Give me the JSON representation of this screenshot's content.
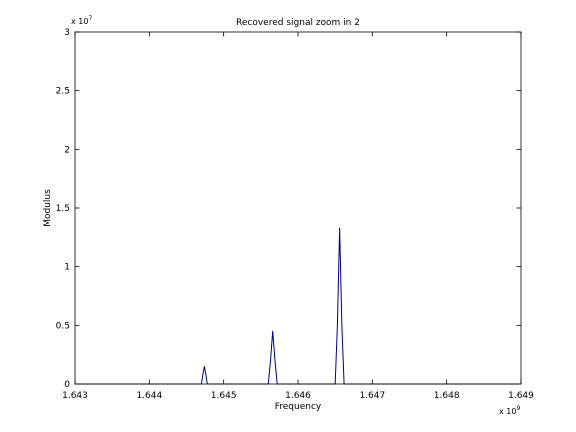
{
  "chart_data": {
    "type": "line",
    "title": "Recovered signal zoom in 2",
    "xlabel": "Frequency",
    "ylabel": "Modulus",
    "x_multiplier": {
      "base": "x 10",
      "exponent": "9"
    },
    "y_multiplier": {
      "base": "x 10",
      "exponent": "7"
    },
    "xlim": [
      1.643,
      1.649
    ],
    "ylim": [
      0,
      3
    ],
    "x_ticks": [
      "1.643",
      "1.644",
      "1.645",
      "1.646",
      "1.647",
      "1.648",
      "1.649"
    ],
    "y_ticks": [
      "0",
      "0.5",
      "1",
      "1.5",
      "2",
      "2.5",
      "3"
    ],
    "grid": false,
    "line_color": "#00008b",
    "series": [
      {
        "x": [
          1.643,
          1.6447,
          1.64472,
          1.64474,
          1.64476,
          1.64478,
          1.6448,
          1.6456,
          1.64563,
          1.64566,
          1.64569,
          1.64572,
          1.64575,
          1.6465,
          1.64653,
          1.64656,
          1.64659,
          1.64662,
          1.64665,
          1.649
        ],
        "y": [
          0,
          0,
          0.08,
          0.15,
          0.08,
          0,
          0,
          0,
          0.2,
          0.45,
          0.2,
          0,
          0,
          0,
          0.5,
          1.33,
          0.5,
          0,
          0,
          0
        ]
      }
    ]
  }
}
